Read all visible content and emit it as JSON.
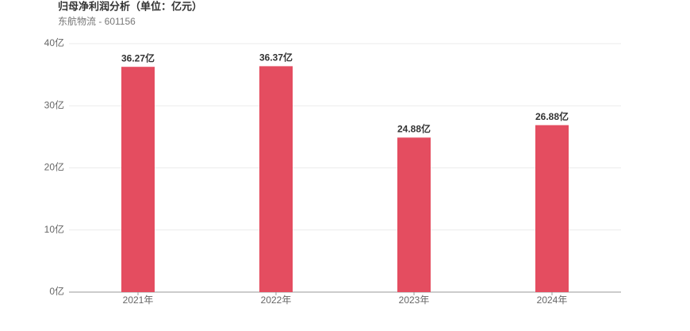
{
  "chart_data": {
    "type": "bar",
    "title": "归母净利润分析（单位：亿元）",
    "subtitle": "东航物流 - 601156",
    "categories": [
      "2021年",
      "2022年",
      "2023年",
      "2024年"
    ],
    "values": [
      36.27,
      36.37,
      24.88,
      26.88
    ],
    "value_labels": [
      "36.27亿",
      "36.37亿",
      "24.88亿",
      "26.88亿"
    ],
    "color": "#e44d60",
    "ylim": [
      0,
      40
    ],
    "yticks": [
      {
        "value": 0,
        "label": "0亿"
      },
      {
        "value": 10,
        "label": "10亿"
      },
      {
        "value": 20,
        "label": "20亿"
      },
      {
        "value": 30,
        "label": "30亿"
      },
      {
        "value": 40,
        "label": "40亿"
      }
    ],
    "grid": true
  }
}
